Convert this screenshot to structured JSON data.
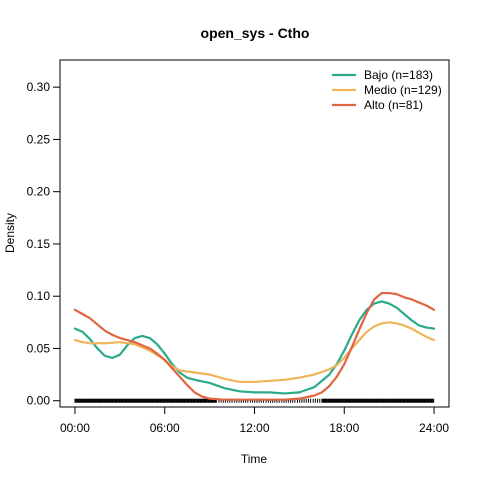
{
  "chart_data": {
    "type": "line",
    "title": "open_sys - Ctho",
    "xlabel": "Time",
    "ylabel": "Density",
    "xlim": [
      -1,
      25
    ],
    "ylim": [
      -0.006,
      0.326
    ],
    "x_ticks": [
      {
        "value": 0,
        "label": "00:00"
      },
      {
        "value": 6,
        "label": "06:00"
      },
      {
        "value": 12,
        "label": "12:00"
      },
      {
        "value": 18,
        "label": "18:00"
      },
      {
        "value": 24,
        "label": "24:00"
      }
    ],
    "y_ticks": [
      {
        "value": 0.0,
        "label": "0.00"
      },
      {
        "value": 0.05,
        "label": "0.05"
      },
      {
        "value": 0.1,
        "label": "0.10"
      },
      {
        "value": 0.15,
        "label": "0.15"
      },
      {
        "value": 0.2,
        "label": "0.20"
      },
      {
        "value": 0.25,
        "label": "0.25"
      },
      {
        "value": 0.3,
        "label": "0.30"
      }
    ],
    "legend_position": "top-right",
    "grid": false,
    "rug": true,
    "series": [
      {
        "name": "Bajo (n=183)",
        "color": "#2aaa8a",
        "x": [
          0,
          0.5,
          1,
          1.5,
          2,
          2.5,
          3,
          3.5,
          4,
          4.5,
          5,
          5.5,
          6,
          6.5,
          7,
          7.5,
          8,
          9,
          10,
          11,
          12,
          13,
          14,
          15,
          16,
          17,
          17.5,
          18,
          18.5,
          19,
          19.5,
          20,
          20.5,
          21,
          21.5,
          22,
          22.5,
          23,
          23.5,
          24
        ],
        "y": [
          0.069,
          0.066,
          0.059,
          0.05,
          0.043,
          0.041,
          0.044,
          0.053,
          0.06,
          0.062,
          0.06,
          0.054,
          0.045,
          0.035,
          0.027,
          0.022,
          0.02,
          0.017,
          0.012,
          0.009,
          0.008,
          0.008,
          0.007,
          0.008,
          0.013,
          0.025,
          0.035,
          0.048,
          0.063,
          0.077,
          0.087,
          0.093,
          0.095,
          0.093,
          0.089,
          0.083,
          0.077,
          0.072,
          0.07,
          0.069
        ]
      },
      {
        "name": "Medio (n=129)",
        "color": "#f0b45a",
        "x": [
          0,
          0.5,
          1,
          2,
          3,
          4,
          5,
          6,
          6.5,
          7,
          8,
          9,
          10,
          11,
          12,
          13,
          14,
          15,
          16,
          17,
          17.5,
          18,
          18.5,
          19,
          19.5,
          20,
          20.5,
          21,
          21.5,
          22,
          22.5,
          23,
          23.5,
          24
        ],
        "y": [
          0.058,
          0.056,
          0.055,
          0.055,
          0.056,
          0.054,
          0.048,
          0.039,
          0.033,
          0.029,
          0.027,
          0.025,
          0.021,
          0.018,
          0.018,
          0.019,
          0.02,
          0.022,
          0.025,
          0.03,
          0.034,
          0.041,
          0.05,
          0.058,
          0.066,
          0.071,
          0.074,
          0.075,
          0.074,
          0.072,
          0.069,
          0.065,
          0.061,
          0.058
        ]
      },
      {
        "name": "Alto (n=81)",
        "color": "#e06540",
        "x": [
          0,
          0.5,
          1,
          1.5,
          2,
          2.5,
          3,
          3.5,
          4,
          4.5,
          5,
          5.5,
          6,
          6.5,
          7,
          7.5,
          8,
          8.5,
          9,
          10,
          11,
          12,
          13,
          14,
          15,
          16,
          16.5,
          17,
          17.5,
          18,
          18.5,
          19,
          19.5,
          20,
          20.5,
          21,
          21.5,
          22,
          22.5,
          23,
          23.5,
          24
        ],
        "y": [
          0.087,
          0.083,
          0.079,
          0.073,
          0.067,
          0.063,
          0.06,
          0.058,
          0.056,
          0.053,
          0.05,
          0.045,
          0.039,
          0.031,
          0.023,
          0.015,
          0.008,
          0.004,
          0.002,
          0.001,
          0.001,
          0.001,
          0.001,
          0.001,
          0.002,
          0.005,
          0.008,
          0.014,
          0.023,
          0.035,
          0.051,
          0.068,
          0.084,
          0.097,
          0.103,
          0.103,
          0.102,
          0.099,
          0.097,
          0.094,
          0.091,
          0.087
        ]
      }
    ]
  }
}
